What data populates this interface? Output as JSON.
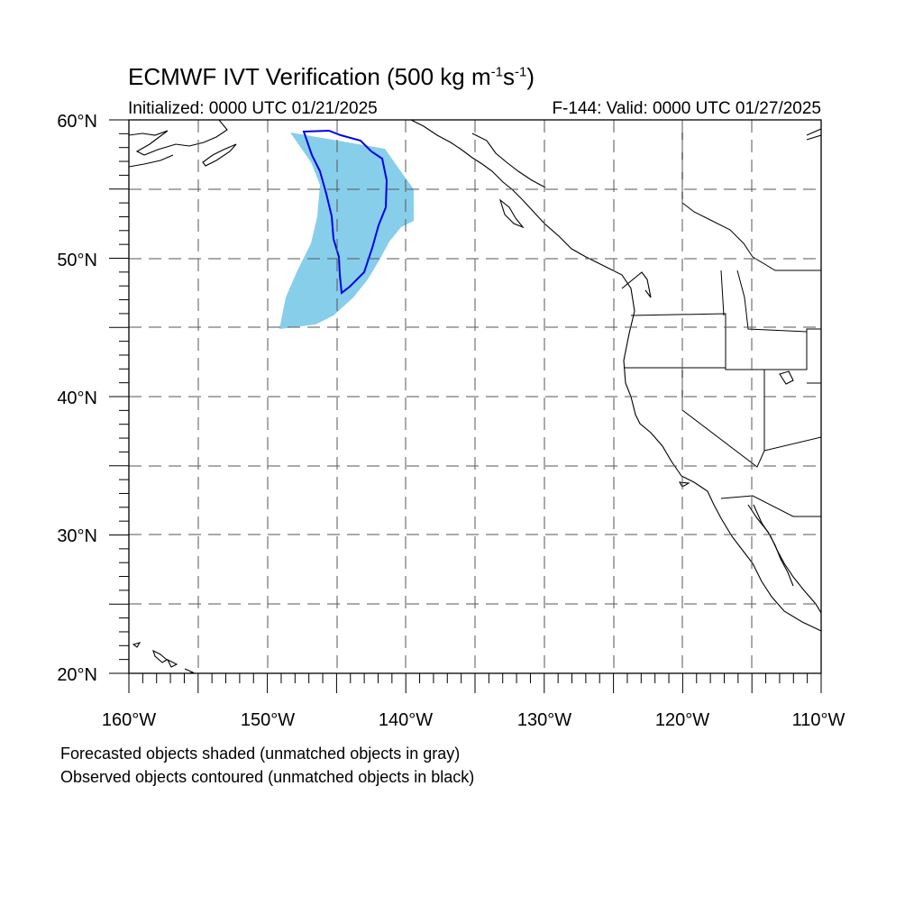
{
  "title": {
    "main": "ECMWF IVT Verification (500 kg m",
    "sup1": "-1",
    "mid": "s",
    "sup2": "-1",
    "end": ")"
  },
  "subtitle_left": "Initialized: 0000 UTC 01/21/2025",
  "subtitle_right": "F-144: Valid: 0000 UTC 01/27/2025",
  "notes": [
    "Forecasted objects shaded (unmatched objects in gray)",
    "Observed objects contoured (unmatched objects in black)"
  ],
  "map": {
    "lon_range": [
      -160,
      -110
    ],
    "lat_range": [
      20,
      60
    ],
    "grid_lon_step": 5,
    "grid_lat_step": 5,
    "lon_labels": [
      "160°W",
      "150°W",
      "140°W",
      "130°W",
      "120°W",
      "110°W"
    ],
    "lat_labels": [
      "60°N",
      "50°N",
      "40°N",
      "30°N",
      "20°N"
    ],
    "colors": {
      "forecast_fill": "#87ceeb",
      "observed_contour": "#0000ee",
      "coastline": "#000000",
      "grid": "#555555"
    }
  }
}
